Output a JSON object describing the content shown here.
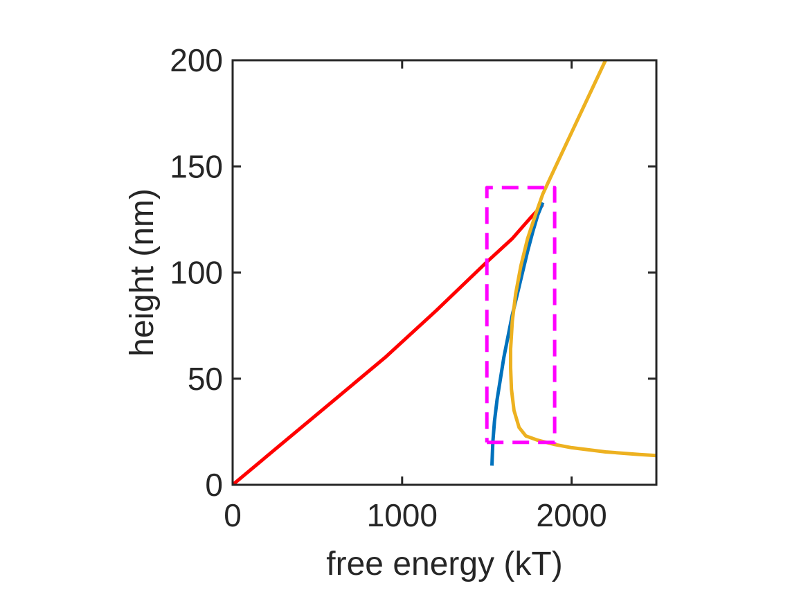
{
  "chart_data": {
    "type": "line",
    "title": "",
    "xlabel": "free energy (kT)",
    "ylabel": "height (nm)",
    "xlim": [
      0,
      2500
    ],
    "ylim": [
      0,
      200
    ],
    "xticks": [
      0,
      1000,
      2000
    ],
    "yticks": [
      0,
      50,
      100,
      150,
      200
    ],
    "grid": false,
    "legend": "none",
    "series": [
      {
        "color": "#FF0000",
        "points": [
          [
            0,
            0
          ],
          [
            300,
            20
          ],
          [
            600,
            40
          ],
          [
            900,
            60
          ],
          [
            1200,
            82
          ],
          [
            1500,
            105
          ],
          [
            1650,
            116
          ],
          [
            1760,
            126
          ],
          [
            1830,
            132
          ]
        ]
      },
      {
        "color": "#0072BD",
        "points": [
          [
            1530,
            9
          ],
          [
            1535,
            20
          ],
          [
            1545,
            30
          ],
          [
            1560,
            40
          ],
          [
            1580,
            50
          ],
          [
            1600,
            60
          ],
          [
            1625,
            70
          ],
          [
            1650,
            80
          ],
          [
            1680,
            90
          ],
          [
            1710,
            100
          ],
          [
            1740,
            110
          ],
          [
            1770,
            119
          ],
          [
            1800,
            127
          ],
          [
            1830,
            133
          ]
        ]
      },
      {
        "color": "#EDB120",
        "points": [
          [
            2200,
            200
          ],
          [
            2100,
            183
          ],
          [
            2000,
            166
          ],
          [
            1900,
            149
          ],
          [
            1830,
            137
          ],
          [
            1790,
            128
          ],
          [
            1740,
            116
          ],
          [
            1700,
            103
          ],
          [
            1670,
            90
          ],
          [
            1650,
            77
          ],
          [
            1640,
            64
          ],
          [
            1640,
            55
          ],
          [
            1645,
            45
          ],
          [
            1660,
            35
          ],
          [
            1690,
            27
          ],
          [
            1730,
            23
          ],
          [
            1800,
            21
          ],
          [
            1900,
            19
          ],
          [
            2000,
            17.5
          ],
          [
            2200,
            15.5
          ],
          [
            2400,
            14.3
          ],
          [
            2500,
            13.8
          ]
        ]
      },
      {
        "color": "#FF00FF",
        "style": "dashed",
        "points": [
          [
            1500,
            20
          ],
          [
            1900,
            20
          ],
          [
            1900,
            140
          ],
          [
            1500,
            140
          ],
          [
            1500,
            20
          ]
        ]
      }
    ]
  }
}
